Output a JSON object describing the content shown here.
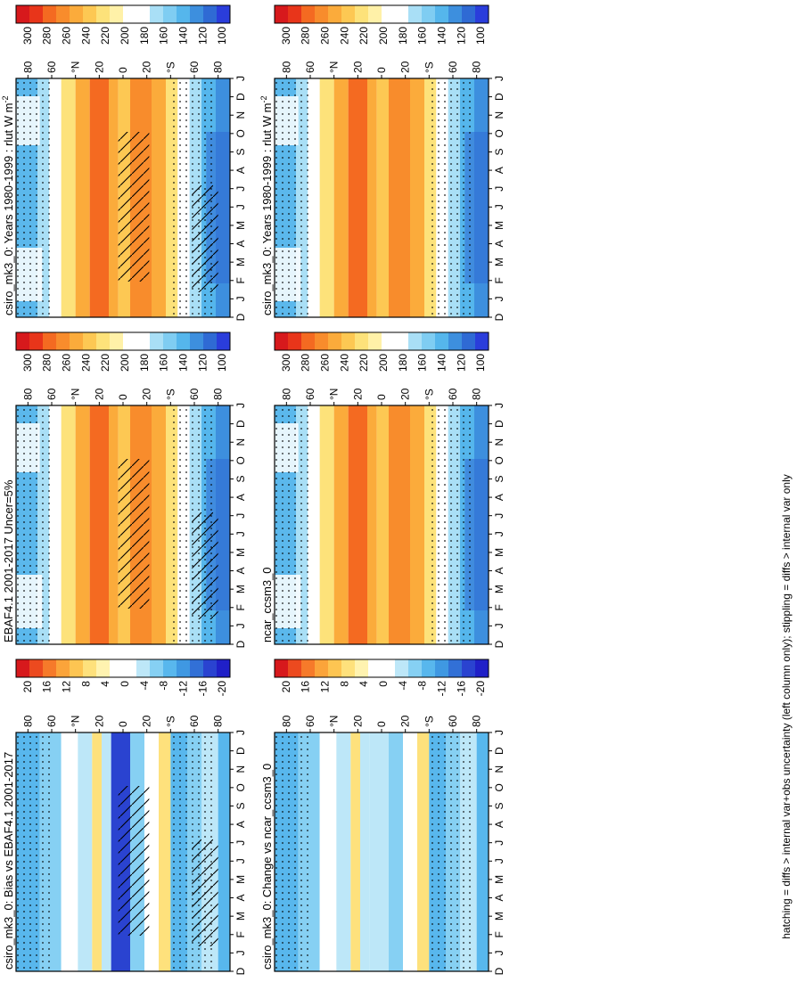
{
  "figure": {
    "footnote": "hatching = diffs > internal var+obs uncertainty (left column only); stippling = diffs > internal var only"
  },
  "chart_data": [
    {
      "id": "A",
      "type": "heatmap",
      "title": "csiro_mk3_0: Years 1980-1999 : rlut W m",
      "title_sup": "-2",
      "row": "model",
      "column": "left",
      "months": [
        "D",
        "J",
        "F",
        "M",
        "A",
        "M",
        "J",
        "J",
        "A",
        "S",
        "O",
        "N",
        "D",
        "J"
      ],
      "lat_ticks": [
        "80",
        "60",
        "°N",
        "20",
        "0",
        "20",
        "°S",
        "60",
        "80"
      ],
      "lat_range": [
        -90,
        90
      ],
      "colorbar": {
        "levels": [
          "300",
          "280",
          "260",
          "240",
          "220",
          "200",
          "180",
          "160",
          "140",
          "120",
          "100"
        ]
      },
      "overlays": [
        "stippling",
        "hatching"
      ]
    },
    {
      "id": "B",
      "type": "heatmap",
      "title": "csiro_mk3_0: Years 1980-1999 : rlut W m",
      "title_sup": "-2",
      "row": "model",
      "column": "right",
      "months": [
        "D",
        "J",
        "F",
        "M",
        "A",
        "M",
        "J",
        "J",
        "A",
        "S",
        "O",
        "N",
        "D",
        "J"
      ],
      "lat_ticks": [
        "80",
        "60",
        "°N",
        "20",
        "0",
        "20",
        "°S",
        "60",
        "80"
      ],
      "lat_range": [
        -90,
        90
      ],
      "colorbar": {
        "levels": [
          "300",
          "280",
          "260",
          "240",
          "220",
          "200",
          "180",
          "160",
          "140",
          "120",
          "100"
        ]
      },
      "overlays": [
        "stippling"
      ]
    },
    {
      "id": "C",
      "type": "heatmap",
      "title": "EBAF4.1 2001-2017 Uncer=5%",
      "title_sup": "",
      "row": "obs",
      "column": "left",
      "months": [
        "D",
        "J",
        "F",
        "M",
        "A",
        "M",
        "J",
        "J",
        "A",
        "S",
        "O",
        "N",
        "D",
        "J"
      ],
      "lat_ticks": [
        "80",
        "60",
        "°N",
        "20",
        "0",
        "20",
        "°S",
        "60",
        "80"
      ],
      "lat_range": [
        -90,
        90
      ],
      "colorbar": {
        "levels": [
          "300",
          "280",
          "260",
          "240",
          "220",
          "200",
          "180",
          "160",
          "140",
          "120",
          "100"
        ]
      },
      "overlays": [
        "stippling",
        "hatching"
      ]
    },
    {
      "id": "D",
      "type": "heatmap",
      "title": "ncar_ccsm3_0",
      "title_sup": "",
      "row": "obs",
      "column": "right",
      "months": [
        "D",
        "J",
        "F",
        "M",
        "A",
        "M",
        "J",
        "J",
        "A",
        "S",
        "O",
        "N",
        "D",
        "J"
      ],
      "lat_ticks": [
        "80",
        "60",
        "°N",
        "20",
        "0",
        "20",
        "°S",
        "60",
        "80"
      ],
      "lat_range": [
        -90,
        90
      ],
      "colorbar": {
        "levels": [
          "300",
          "280",
          "260",
          "240",
          "220",
          "200",
          "180",
          "160",
          "140",
          "120",
          "100"
        ]
      },
      "overlays": [
        "stippling"
      ]
    },
    {
      "id": "E",
      "type": "heatmap",
      "title": "csiro_mk3_0: Bias vs EBAF4.1 2001-2017",
      "title_sup": "",
      "row": "diff",
      "column": "left",
      "months": [
        "D",
        "J",
        "F",
        "M",
        "A",
        "M",
        "J",
        "J",
        "A",
        "S",
        "O",
        "N",
        "D",
        "J"
      ],
      "lat_ticks": [
        "80",
        "60",
        "°N",
        "20",
        "0",
        "20",
        "°S",
        "60",
        "80"
      ],
      "lat_range": [
        -90,
        90
      ],
      "colorbar": {
        "levels": [
          "20",
          "16",
          "12",
          "8",
          "4",
          "0",
          "-4",
          "-8",
          "-12",
          "-16",
          "-20"
        ]
      },
      "overlays": [
        "stippling",
        "hatching"
      ]
    },
    {
      "id": "F",
      "type": "heatmap",
      "title": "csiro_mk3_0: Change vs ncar_ccsm3_0",
      "title_sup": "",
      "row": "diff",
      "column": "right",
      "months": [
        "D",
        "J",
        "F",
        "M",
        "A",
        "M",
        "J",
        "J",
        "A",
        "S",
        "O",
        "N",
        "D",
        "J"
      ],
      "lat_ticks": [
        "80",
        "60",
        "°N",
        "20",
        "0",
        "20",
        "°S",
        "60",
        "80"
      ],
      "lat_range": [
        -90,
        90
      ],
      "colorbar": {
        "levels": [
          "20",
          "16",
          "12",
          "8",
          "4",
          "0",
          "-4",
          "-8",
          "-12",
          "-16",
          "-20"
        ]
      },
      "overlays": [
        "stippling"
      ]
    }
  ]
}
